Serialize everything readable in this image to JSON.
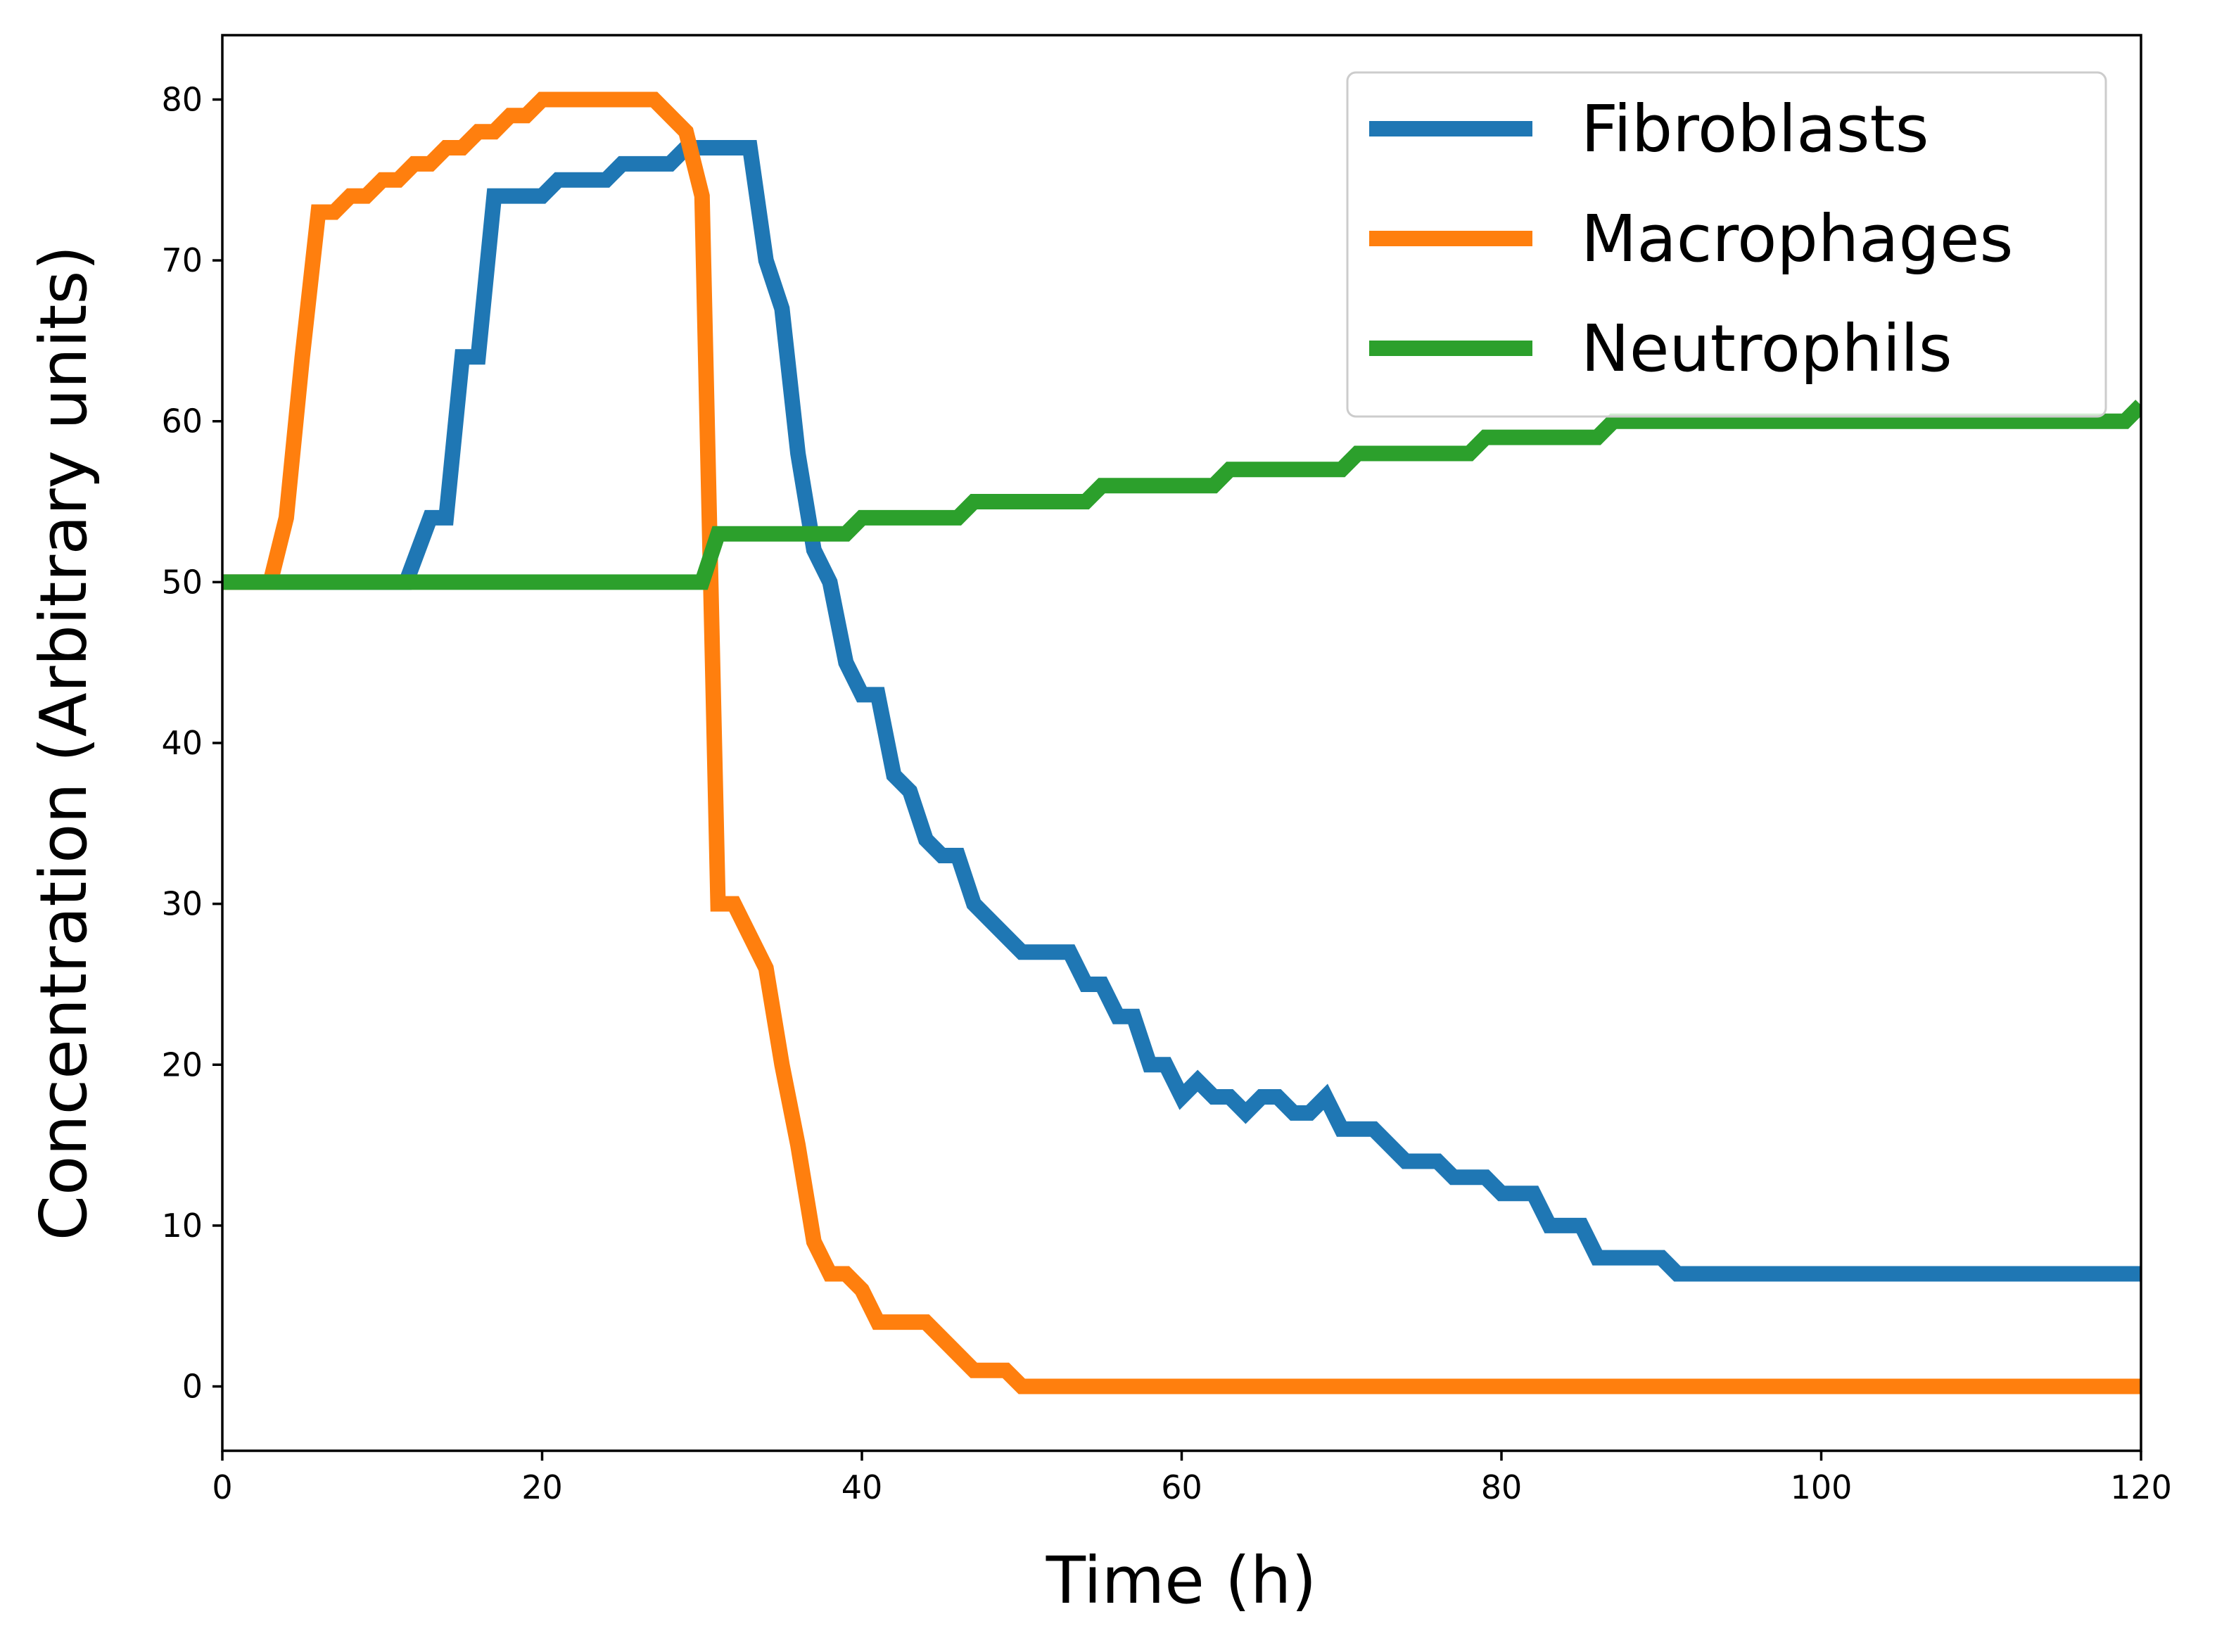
{
  "chart_data": {
    "type": "line",
    "title": "",
    "xlabel": "Time (h)",
    "ylabel": "Concentration (Arbitrary units)",
    "xlim": [
      0,
      120
    ],
    "ylim": [
      -4,
      84
    ],
    "xticks": [
      0,
      20,
      40,
      60,
      80,
      100,
      120
    ],
    "yticks": [
      0,
      10,
      20,
      30,
      40,
      50,
      60,
      70,
      80
    ],
    "grid": false,
    "legend_position": "top-right",
    "series": [
      {
        "name": "Fibroblasts",
        "color": "#1f77b4",
        "points": [
          [
            0,
            50
          ],
          [
            11.5,
            50
          ],
          [
            13,
            54
          ],
          [
            14,
            54
          ],
          [
            15,
            64
          ],
          [
            16,
            64
          ],
          [
            17,
            74
          ],
          [
            20,
            74
          ],
          [
            21,
            75
          ],
          [
            24,
            75
          ],
          [
            25,
            76
          ],
          [
            28,
            76
          ],
          [
            29,
            77
          ],
          [
            33,
            77
          ],
          [
            34,
            70
          ],
          [
            35,
            67
          ],
          [
            36,
            58
          ],
          [
            37,
            52
          ],
          [
            38,
            50
          ],
          [
            39,
            45
          ],
          [
            40,
            43
          ],
          [
            41,
            43
          ],
          [
            42,
            38
          ],
          [
            43,
            37
          ],
          [
            44,
            34
          ],
          [
            45,
            33
          ],
          [
            46,
            33
          ],
          [
            47,
            30
          ],
          [
            48,
            29
          ],
          [
            50,
            27
          ],
          [
            53,
            27
          ],
          [
            54,
            25
          ],
          [
            55,
            25
          ],
          [
            56,
            23
          ],
          [
            57,
            23
          ],
          [
            58,
            20
          ],
          [
            59,
            20
          ],
          [
            60,
            18
          ],
          [
            61,
            19
          ],
          [
            62,
            18
          ],
          [
            63,
            18
          ],
          [
            64,
            17
          ],
          [
            65,
            18
          ],
          [
            66,
            18
          ],
          [
            67,
            17
          ],
          [
            68,
            17
          ],
          [
            69,
            18
          ],
          [
            70,
            16
          ],
          [
            72,
            16
          ],
          [
            74,
            14
          ],
          [
            76,
            14
          ],
          [
            77,
            13
          ],
          [
            79,
            13
          ],
          [
            80,
            12
          ],
          [
            82,
            12
          ],
          [
            83,
            10
          ],
          [
            85,
            10
          ],
          [
            86,
            8
          ],
          [
            90,
            8
          ],
          [
            91,
            7
          ],
          [
            120,
            7
          ]
        ]
      },
      {
        "name": "Macrophages",
        "color": "#ff7f0e",
        "points": [
          [
            0,
            50
          ],
          [
            3,
            50
          ],
          [
            4,
            54
          ],
          [
            5,
            64
          ],
          [
            6,
            73
          ],
          [
            7,
            73
          ],
          [
            8,
            74
          ],
          [
            9,
            74
          ],
          [
            10,
            75
          ],
          [
            11,
            75
          ],
          [
            12,
            76
          ],
          [
            13,
            76
          ],
          [
            14,
            77
          ],
          [
            15,
            77
          ],
          [
            16,
            78
          ],
          [
            17,
            78
          ],
          [
            18,
            79
          ],
          [
            19,
            79
          ],
          [
            20,
            80
          ],
          [
            27,
            80
          ],
          [
            29,
            78
          ],
          [
            30,
            74
          ],
          [
            31,
            30
          ],
          [
            32,
            30
          ],
          [
            34,
            26
          ],
          [
            35,
            20
          ],
          [
            36,
            15
          ],
          [
            37,
            9
          ],
          [
            38,
            7
          ],
          [
            39,
            7
          ],
          [
            40,
            6
          ],
          [
            41,
            4
          ],
          [
            44,
            4
          ],
          [
            47,
            1
          ],
          [
            49,
            1
          ],
          [
            50,
            0
          ],
          [
            120,
            0
          ]
        ]
      },
      {
        "name": "Neutrophils",
        "color": "#2ca02c",
        "points": [
          [
            0,
            50
          ],
          [
            30,
            50
          ],
          [
            31,
            53
          ],
          [
            39,
            53
          ],
          [
            40,
            54
          ],
          [
            46,
            54
          ],
          [
            47,
            55
          ],
          [
            54,
            55
          ],
          [
            55,
            56
          ],
          [
            62,
            56
          ],
          [
            63,
            57
          ],
          [
            70,
            57
          ],
          [
            71,
            58
          ],
          [
            78,
            58
          ],
          [
            79,
            59
          ],
          [
            86,
            59
          ],
          [
            87,
            60
          ],
          [
            119,
            60
          ],
          [
            120,
            61
          ]
        ]
      }
    ]
  }
}
